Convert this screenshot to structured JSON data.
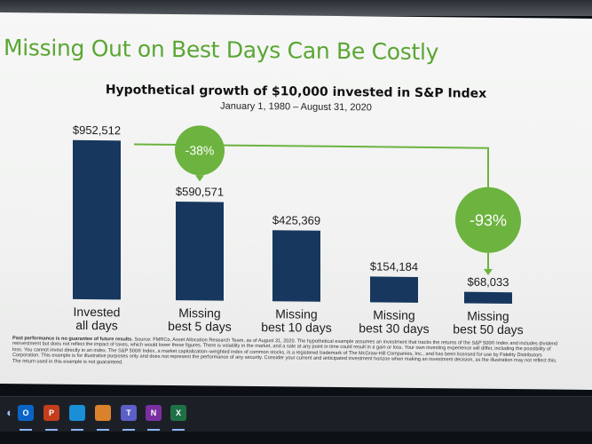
{
  "slide_title": "Missing Out on Best Days Can Be Costly",
  "chart_data": {
    "type": "bar",
    "title": "Hypothetical growth of $10,000 invested in S&P Index",
    "subtitle": "January 1, 1980 – August 31, 2020",
    "categories": [
      "Invested all days",
      "Missing best 5 days",
      "Missing best 10 days",
      "Missing best 30 days",
      "Missing best 50 days"
    ],
    "category_lines": [
      [
        "Invested",
        "all days"
      ],
      [
        "Missing",
        "best 5 days"
      ],
      [
        "Missing",
        "best 10 days"
      ],
      [
        "Missing",
        "best 30 days"
      ],
      [
        "Missing",
        "best 50 days"
      ]
    ],
    "values": [
      952512,
      590571,
      425369,
      154184,
      68033
    ],
    "value_labels": [
      "$952,512",
      "$590,571",
      "$425,369",
      "$154,184",
      "$68,033"
    ],
    "ylim": [
      0,
      1000000
    ],
    "bar_color": "#17375e",
    "callouts": [
      {
        "label": "-38%",
        "from_index": 0,
        "to_index": 1
      },
      {
        "label": "-93%",
        "from_index": 0,
        "to_index": 4
      }
    ],
    "callout_color": "#6db33f"
  },
  "footnote": {
    "bold": "Past performance is no guarantee of future results.",
    "text": " Source: FMRCo, Asset Allocation Research Team, as of August 31, 2020. The hypothetical example assumes an investment that tracks the returns of the S&P 500® Index and includes dividend reinvestment but does not reflect the impact of taxes, which would lower these figures. There is volatility in the market, and a sale at any point in time could result in a gain or loss. Your own investing experience will differ, including the possibility of loss. You cannot invest directly in an index. The S&P 500® Index, a market capitalization–weighted index of common stocks, is a registered trademark of The McGraw-Hill Companies, Inc., and has been licensed for use by Fidelity Distributors Corporation. This example is for illustrative purposes only and does not represent the performance of any security. Consider your current and anticipated investment horizon when making an investment decision, as the illustration may not reflect this. The return used in this example is not guaranteed."
  },
  "taskbar": {
    "apps": [
      {
        "name": "outlook-icon",
        "glyph": "O",
        "color": "#0a64c8"
      },
      {
        "name": "powerpoint-icon",
        "glyph": "P",
        "color": "#c43e1c"
      },
      {
        "name": "edge-icon",
        "glyph": "",
        "color": "#1a8fd8"
      },
      {
        "name": "app-orange-icon",
        "glyph": "",
        "color": "#d9822b"
      },
      {
        "name": "teams-icon",
        "glyph": "T",
        "color": "#5b5fc7"
      },
      {
        "name": "onenote-icon",
        "glyph": "N",
        "color": "#7a2fa0"
      },
      {
        "name": "excel-icon",
        "glyph": "X",
        "color": "#1e7145"
      }
    ]
  }
}
